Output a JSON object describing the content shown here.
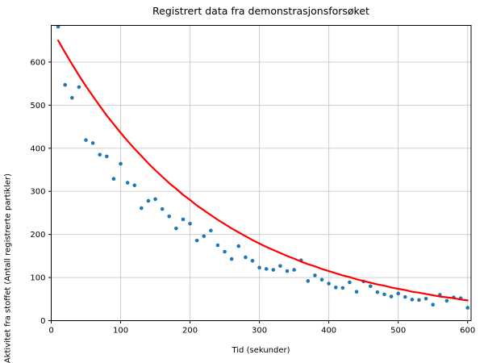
{
  "chart_data": {
    "type": "scatter",
    "title": "Registrert data fra demonstrasjonsforsøket",
    "xlabel": "Tid (sekunder)",
    "ylabel": "Aktivitet fra stoffet (Antall registrerte partikler)",
    "xlim": [
      0,
      605
    ],
    "ylim": [
      0,
      685
    ],
    "x_ticks": [
      0,
      100,
      200,
      300,
      400,
      500,
      600
    ],
    "y_ticks": [
      0,
      100,
      200,
      300,
      400,
      500,
      600
    ],
    "grid": true,
    "legend": false,
    "colors": {
      "points": "#1f77b4",
      "curve": "#ff0000",
      "grid": "#c9c9c9",
      "spine": "#000000",
      "background": "#ffffff",
      "text": "#000000"
    },
    "series": [
      {
        "id": "measured-activity",
        "type": "scatter",
        "x": [
          10,
          20,
          30,
          40,
          50,
          60,
          70,
          80,
          90,
          100,
          110,
          120,
          130,
          140,
          150,
          160,
          170,
          180,
          190,
          200,
          210,
          220,
          230,
          240,
          250,
          260,
          270,
          280,
          290,
          300,
          310,
          320,
          330,
          340,
          350,
          360,
          370,
          380,
          390,
          400,
          410,
          420,
          430,
          440,
          450,
          460,
          470,
          480,
          490,
          500,
          510,
          520,
          530,
          540,
          550,
          560,
          570,
          580,
          590,
          600
        ],
        "y": [
          682,
          547,
          517,
          542,
          419,
          412,
          385,
          381,
          329,
          364,
          320,
          314,
          261,
          278,
          282,
          259,
          242,
          214,
          235,
          225,
          186,
          196,
          209,
          175,
          160,
          143,
          173,
          147,
          139,
          123,
          120,
          118,
          127,
          115,
          118,
          140,
          92,
          105,
          95,
          86,
          77,
          76,
          89,
          67,
          91,
          80,
          66,
          61,
          56,
          63,
          55,
          49,
          48,
          51,
          37,
          60,
          46,
          54,
          52,
          30
        ]
      },
      {
        "id": "exponential-decay-curve",
        "type": "line",
        "x": [
          10,
          20,
          30,
          40,
          50,
          60,
          70,
          80,
          90,
          100,
          110,
          120,
          130,
          140,
          150,
          160,
          170,
          180,
          190,
          200,
          210,
          220,
          230,
          240,
          250,
          260,
          270,
          280,
          290,
          300,
          310,
          320,
          330,
          340,
          350,
          360,
          370,
          380,
          390,
          400,
          410,
          420,
          430,
          440,
          450,
          460,
          470,
          480,
          490,
          500,
          510,
          520,
          530,
          540,
          550,
          560,
          570,
          580,
          590,
          600
        ],
        "y": [
          650,
          622,
          595,
          569,
          544,
          521,
          498,
          476,
          456,
          436,
          417,
          399,
          382,
          365,
          349,
          334,
          319,
          306,
          292,
          280,
          267,
          256,
          245,
          234,
          224,
          214,
          205,
          196,
          187,
          179,
          171,
          164,
          157,
          150,
          144,
          137,
          131,
          126,
          120,
          115,
          110,
          105,
          101,
          96,
          92,
          88,
          84,
          81,
          77,
          74,
          71,
          67,
          65,
          62,
          59,
          56,
          54,
          52,
          49,
          47
        ]
      }
    ]
  }
}
